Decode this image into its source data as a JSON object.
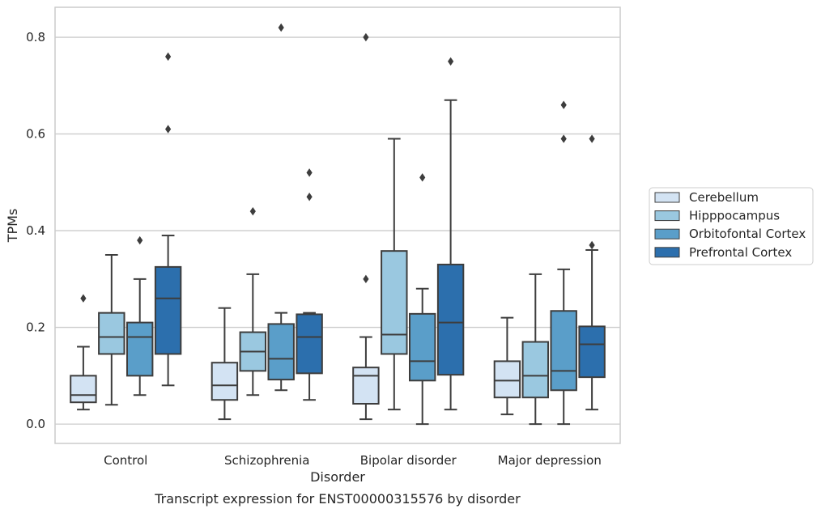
{
  "chart_data": {
    "type": "box",
    "title": "",
    "caption": "Transcript expression for ENST00000315576 by disorder",
    "xlabel": "Disorder",
    "ylabel": "TPMs",
    "ylim": [
      -0.04,
      0.862
    ],
    "yticks": [
      0.0,
      0.2,
      0.4,
      0.6,
      0.8
    ],
    "ytick_labels": [
      "0.0",
      "0.2",
      "0.4",
      "0.6",
      "0.8"
    ],
    "grid": "horizontal",
    "legend_position": "right",
    "categories": [
      "Control",
      "Schizophrenia",
      "Bipolar disorder",
      "Major depression"
    ],
    "series": [
      {
        "name": "Cerebellum",
        "color": "#d3e3f3",
        "boxes": [
          {
            "whisker_low": 0.03,
            "q1": 0.045,
            "median": 0.06,
            "q3": 0.1,
            "whisker_high": 0.16,
            "outliers": [
              0.26
            ]
          },
          {
            "whisker_low": 0.01,
            "q1": 0.05,
            "median": 0.08,
            "q3": 0.127,
            "whisker_high": 0.24,
            "outliers": []
          },
          {
            "whisker_low": 0.01,
            "q1": 0.042,
            "median": 0.1,
            "q3": 0.117,
            "whisker_high": 0.18,
            "outliers": [
              0.3,
              0.8
            ]
          },
          {
            "whisker_low": 0.02,
            "q1": 0.055,
            "median": 0.09,
            "q3": 0.13,
            "whisker_high": 0.22,
            "outliers": []
          }
        ]
      },
      {
        "name": "Hipppocampus",
        "color": "#9ac8e0",
        "boxes": [
          {
            "whisker_low": 0.04,
            "q1": 0.145,
            "median": 0.18,
            "q3": 0.23,
            "whisker_high": 0.35,
            "outliers": []
          },
          {
            "whisker_low": 0.06,
            "q1": 0.11,
            "median": 0.15,
            "q3": 0.19,
            "whisker_high": 0.31,
            "outliers": [
              0.44
            ]
          },
          {
            "whisker_low": 0.03,
            "q1": 0.145,
            "median": 0.185,
            "q3": 0.358,
            "whisker_high": 0.59,
            "outliers": []
          },
          {
            "whisker_low": 0.0,
            "q1": 0.055,
            "median": 0.1,
            "q3": 0.17,
            "whisker_high": 0.31,
            "outliers": []
          }
        ]
      },
      {
        "name": "Orbitofontal Cortex",
        "color": "#5a9ec9",
        "boxes": [
          {
            "whisker_low": 0.06,
            "q1": 0.1,
            "median": 0.18,
            "q3": 0.21,
            "whisker_high": 0.3,
            "outliers": [
              0.38
            ]
          },
          {
            "whisker_low": 0.07,
            "q1": 0.092,
            "median": 0.135,
            "q3": 0.207,
            "whisker_high": 0.23,
            "outliers": [
              0.82
            ]
          },
          {
            "whisker_low": 0.0,
            "q1": 0.09,
            "median": 0.13,
            "q3": 0.228,
            "whisker_high": 0.28,
            "outliers": [
              0.51
            ]
          },
          {
            "whisker_low": 0.0,
            "q1": 0.07,
            "median": 0.11,
            "q3": 0.234,
            "whisker_high": 0.32,
            "outliers": [
              0.59,
              0.66
            ]
          }
        ]
      },
      {
        "name": "Prefrontal Cortex",
        "color": "#2c6fad",
        "boxes": [
          {
            "whisker_low": 0.08,
            "q1": 0.145,
            "median": 0.26,
            "q3": 0.325,
            "whisker_high": 0.39,
            "outliers": [
              0.61,
              0.76
            ]
          },
          {
            "whisker_low": 0.05,
            "q1": 0.105,
            "median": 0.18,
            "q3": 0.227,
            "whisker_high": 0.23,
            "outliers": [
              0.47,
              0.52
            ]
          },
          {
            "whisker_low": 0.03,
            "q1": 0.102,
            "median": 0.21,
            "q3": 0.33,
            "whisker_high": 0.67,
            "outliers": [
              0.75
            ]
          },
          {
            "whisker_low": 0.03,
            "q1": 0.097,
            "median": 0.165,
            "q3": 0.202,
            "whisker_high": 0.36,
            "outliers": [
              0.37,
              0.59
            ]
          }
        ]
      }
    ]
  }
}
